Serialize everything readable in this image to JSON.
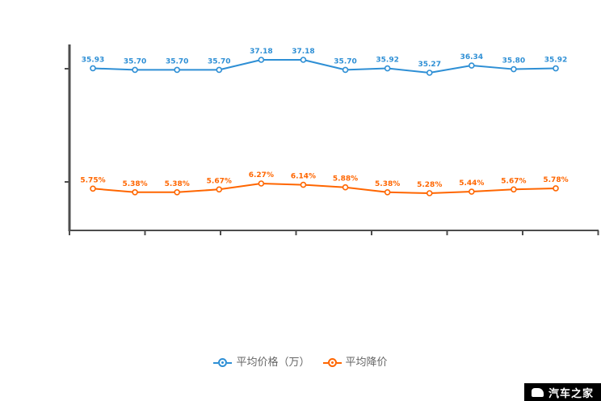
{
  "chart_data": {
    "type": "line",
    "x": [
      1,
      2,
      3,
      4,
      5,
      6,
      7,
      8,
      9,
      10,
      11,
      12
    ],
    "categories": [],
    "title": "",
    "xlabel": "",
    "ylabel": "",
    "grid": false,
    "legend_position": "bottom",
    "axis_color": "#4d4d4d",
    "series": [
      {
        "name": "平均价格（万）",
        "color": "#2e8fd5",
        "values": [
          35.93,
          35.7,
          35.7,
          35.7,
          37.18,
          37.18,
          35.7,
          35.92,
          35.27,
          36.34,
          35.8,
          35.92
        ],
        "labels": [
          "35.93",
          "35.70",
          "35.70",
          "35.70",
          "37.18",
          "37.18",
          "35.70",
          "35.92",
          "35.27",
          "36.34",
          "35.80",
          "35.92"
        ]
      },
      {
        "name": "平均降价",
        "color": "#ff6600",
        "values": [
          5.75,
          5.38,
          5.38,
          5.67,
          6.27,
          6.14,
          5.88,
          5.38,
          5.28,
          5.44,
          5.67,
          5.78
        ],
        "labels": [
          "5.75%",
          "5.38%",
          "5.38%",
          "5.67%",
          "6.27%",
          "6.14%",
          "5.88%",
          "5.38%",
          "5.28%",
          "5.44%",
          "5.67%",
          "5.78%"
        ]
      }
    ]
  },
  "legend": {
    "items": [
      {
        "label": "平均价格（万）",
        "color": "#2e8fd5"
      },
      {
        "label": "平均降价",
        "color": "#ff6600"
      }
    ]
  },
  "watermark": {
    "text": "汽车之家",
    "bg": "#000000",
    "fg": "#ffffff"
  }
}
